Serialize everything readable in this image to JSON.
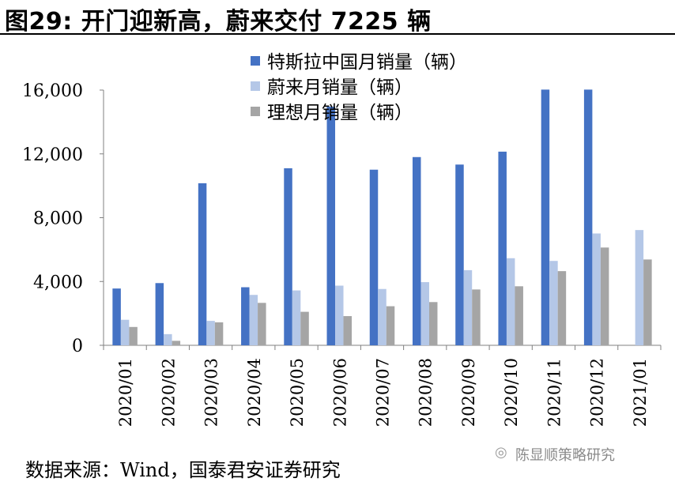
{
  "figure": {
    "title": "图29: 开门迎新高，蔚来交付 7225 辆",
    "source": "数据来源：Wind，国泰君安证券研究",
    "watermark": "陈显顺策略研究",
    "watermark_icon": "wechat-icon"
  },
  "chart_data": {
    "type": "bar",
    "title": "图29: 开门迎新高，蔚来交付 7225 辆",
    "xlabel": "",
    "ylabel": "",
    "ylim": [
      0,
      16000
    ],
    "yticks": [
      0,
      4000,
      8000,
      12000,
      16000
    ],
    "ytick_labels": [
      "0",
      "4,000",
      "8,000",
      "12,000",
      "16,000"
    ],
    "grid": false,
    "legend_position": "top-center",
    "categories": [
      "2020/01",
      "2020/02",
      "2020/03",
      "2020/04",
      "2020/05",
      "2020/06",
      "2020/07",
      "2020/08",
      "2020/09",
      "2020/10",
      "2020/11",
      "2020/12",
      "2021/01"
    ],
    "series": [
      {
        "name": "特斯拉中国月销量（辆）",
        "color": "#4472C4",
        "values": [
          3560,
          3900,
          10160,
          3640,
          11100,
          14960,
          11010,
          11800,
          11330,
          12140,
          16030,
          16030,
          null
        ]
      },
      {
        "name": "蔚来月销量（辆）",
        "color": "#B4C7E7",
        "values": [
          1600,
          700,
          1530,
          3160,
          3440,
          3740,
          3530,
          3960,
          4710,
          5460,
          5290,
          7010,
          7225
        ]
      },
      {
        "name": "理想月销量（辆）",
        "color": "#A5A5A5",
        "values": [
          1150,
          280,
          1440,
          2660,
          2100,
          1830,
          2450,
          2710,
          3500,
          3700,
          4650,
          6130,
          5380
        ]
      }
    ]
  }
}
